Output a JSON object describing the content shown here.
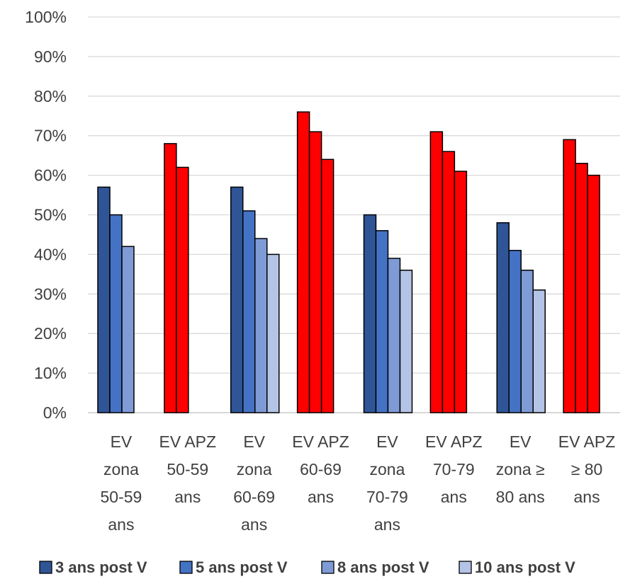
{
  "chart_data": {
    "type": "bar",
    "categories": [
      [
        "EV",
        "zona",
        "50-59",
        "ans"
      ],
      [
        "EV APZ",
        "50-59",
        "ans"
      ],
      [
        "EV",
        "zona",
        "60-69",
        "ans"
      ],
      [
        "EV APZ",
        "60-69",
        "ans"
      ],
      [
        "EV",
        "zona",
        "70-79",
        "ans"
      ],
      [
        "EV APZ",
        "70-79",
        "ans"
      ],
      [
        "EV",
        "zona ≥",
        "80 ans"
      ],
      [
        "EV APZ",
        "≥ 80",
        "ans"
      ]
    ],
    "category_group": [
      "zona",
      "apz",
      "zona",
      "apz",
      "zona",
      "apz",
      "zona",
      "apz"
    ],
    "series": [
      {
        "name": "3 ans post V",
        "values": [
          57,
          68,
          57,
          76,
          50,
          71,
          48,
          69
        ]
      },
      {
        "name": "5 ans post V",
        "values": [
          50,
          62,
          51,
          71,
          46,
          66,
          41,
          63
        ]
      },
      {
        "name": "8 ans post V",
        "values": [
          42,
          null,
          44,
          64,
          39,
          61,
          36,
          60
        ]
      },
      {
        "name": "10 ans post V",
        "values": [
          null,
          null,
          40,
          null,
          36,
          null,
          31,
          null
        ]
      }
    ],
    "colors": {
      "zona": [
        "#2f5597",
        "#4472c4",
        "#7f9bd6",
        "#b4c4e6"
      ],
      "apz": [
        "#ff0000",
        "#ff0000",
        "#ff0000",
        "#ff0000"
      ],
      "legend": [
        "#2f5597",
        "#4472c4",
        "#7f9bd6",
        "#b4c4e6"
      ]
    },
    "y_ticks": [
      "0%",
      "10%",
      "20%",
      "30%",
      "40%",
      "50%",
      "60%",
      "70%",
      "80%",
      "90%",
      "100%"
    ],
    "ylim": [
      0,
      100
    ],
    "grid": true,
    "legend_position": "bottom",
    "title": "",
    "xlabel": "",
    "ylabel": ""
  }
}
